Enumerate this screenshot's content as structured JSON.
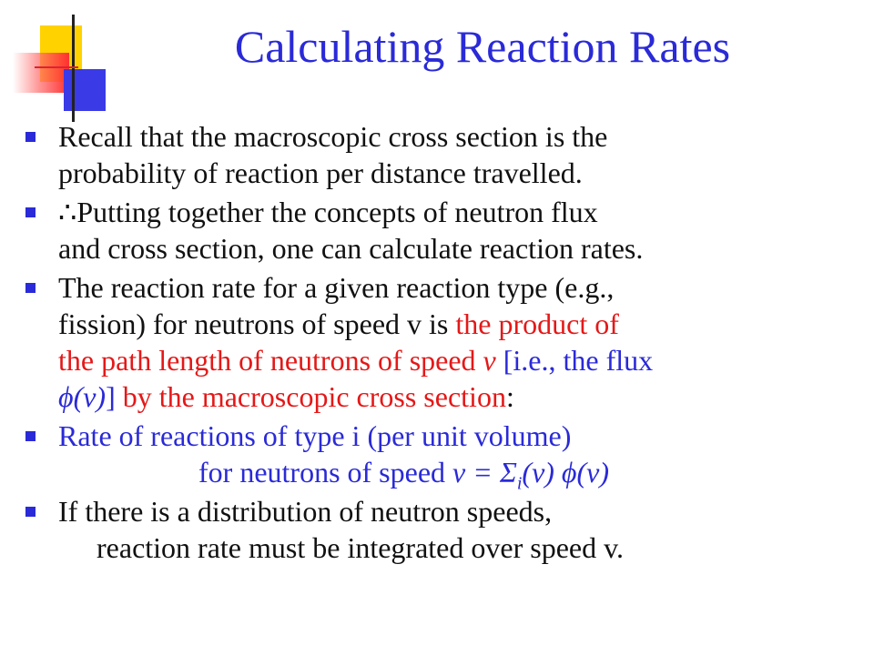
{
  "title": "Calculating Reaction Rates",
  "colors": {
    "accent": "#2a2ad8",
    "red": "#e41818",
    "text": "#111111"
  },
  "icons": {
    "bullet": "square-bullet-icon",
    "decoration": "corner-decoration-icon"
  },
  "bullets": [
    {
      "line1": "Recall that the macroscopic cross section is the",
      "line2": "probability of reaction per distance travelled."
    },
    {
      "line1": "∴Putting together the concepts of neutron flux",
      "line2": "and cross section, one can calculate reaction rates."
    },
    {
      "line1": "The reaction rate for a given reaction type (e.g.,",
      "line2a": "fission) for neutrons of speed v is ",
      "line2b": "the product of",
      "line3a": "the path length of neutrons of speed ",
      "line3b": "v",
      "line3c": " [i.e., the flux",
      "line4a": "ϕ",
      "line4b": "(v)",
      "line4c": "] ",
      "line4d": "by the macroscopic cross section",
      "line4e": ":"
    },
    {
      "line1": "Rate of reactions of type i (per unit volume)",
      "line2a": "for neutrons of speed ",
      "line2b": "v = Σ",
      "line2sub": "i",
      "line2c": "(v)",
      "line2d": "ϕ",
      "line2e": "(v)"
    },
    {
      "line1": "If there is a distribution of neutron speeds,",
      "line2": "reaction rate must be integrated over speed v."
    }
  ]
}
